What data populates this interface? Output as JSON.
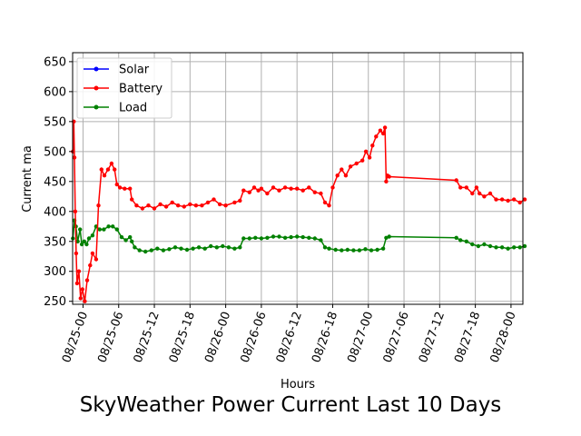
{
  "chart_data": {
    "type": "line",
    "title": "SkyWeather Power Current Last 10 Days",
    "xlabel": "Hours",
    "ylabel": "Current ma",
    "xlim": [
      "08/24 22:15",
      "08/28 02:00"
    ],
    "ylim": [
      245,
      665
    ],
    "yticks": [
      250,
      300,
      350,
      400,
      450,
      500,
      550,
      600,
      650
    ],
    "xticks": [
      "08/25-00",
      "08/25-06",
      "08/25-12",
      "08/25-18",
      "08/26-00",
      "08/26-06",
      "08/26-12",
      "08/26-18",
      "08/27-00",
      "08/27-06",
      "08/27-12",
      "08/27-18",
      "08/28-00"
    ],
    "x_unit_note": "x values are hours since 08/25 00:00",
    "grid": true,
    "legend_position": "top-left",
    "series": [
      {
        "name": "Solar",
        "color": "#0000ff",
        "points": []
      },
      {
        "name": "Battery",
        "color": "#ff0000",
        "points": [
          [
            -1.7,
            500
          ],
          [
            -1.55,
            550
          ],
          [
            -1.45,
            490
          ],
          [
            -1.3,
            400
          ],
          [
            -1.15,
            330
          ],
          [
            -1.0,
            280
          ],
          [
            -0.7,
            300
          ],
          [
            -0.4,
            255
          ],
          [
            -0.1,
            270
          ],
          [
            0.3,
            250
          ],
          [
            0.7,
            285
          ],
          [
            1.2,
            310
          ],
          [
            1.6,
            330
          ],
          [
            2.2,
            320
          ],
          [
            2.6,
            410
          ],
          [
            3.1,
            470
          ],
          [
            3.6,
            460
          ],
          [
            4.2,
            470
          ],
          [
            4.8,
            480
          ],
          [
            5.3,
            470
          ],
          [
            5.7,
            445
          ],
          [
            6.2,
            440
          ],
          [
            7.0,
            438
          ],
          [
            7.9,
            438
          ],
          [
            8.2,
            420
          ],
          [
            9.0,
            410
          ],
          [
            10.0,
            405
          ],
          [
            11.0,
            410
          ],
          [
            12.0,
            405
          ],
          [
            13.0,
            412
          ],
          [
            14.0,
            408
          ],
          [
            15.0,
            415
          ],
          [
            16.0,
            410
          ],
          [
            17.0,
            408
          ],
          [
            18.0,
            412
          ],
          [
            19.0,
            410
          ],
          [
            20.0,
            410
          ],
          [
            21.0,
            415
          ],
          [
            22.0,
            420
          ],
          [
            23.0,
            412
          ],
          [
            24.0,
            410
          ],
          [
            25.5,
            415
          ],
          [
            26.4,
            418
          ],
          [
            27.0,
            435
          ],
          [
            28.0,
            432
          ],
          [
            28.8,
            440
          ],
          [
            29.5,
            435
          ],
          [
            30.0,
            438
          ],
          [
            31.0,
            430
          ],
          [
            32.0,
            440
          ],
          [
            33.0,
            435
          ],
          [
            34.0,
            440
          ],
          [
            35.0,
            438
          ],
          [
            36.0,
            438
          ],
          [
            37.0,
            435
          ],
          [
            38.0,
            440
          ],
          [
            39.0,
            432
          ],
          [
            40.0,
            430
          ],
          [
            40.7,
            415
          ],
          [
            41.4,
            410
          ],
          [
            42.0,
            440
          ],
          [
            42.8,
            460
          ],
          [
            43.5,
            470
          ],
          [
            44.2,
            460
          ],
          [
            45.0,
            475
          ],
          [
            46.0,
            480
          ],
          [
            47.0,
            485
          ],
          [
            47.6,
            500
          ],
          [
            48.2,
            490
          ],
          [
            48.7,
            510
          ],
          [
            49.3,
            525
          ],
          [
            50.0,
            535
          ],
          [
            50.5,
            530
          ],
          [
            50.8,
            540
          ],
          [
            51.0,
            450
          ],
          [
            51.2,
            460
          ],
          [
            51.5,
            458
          ],
          [
            62.8,
            452
          ],
          [
            63.5,
            440
          ],
          [
            64.5,
            440
          ],
          [
            65.5,
            430
          ],
          [
            66.2,
            440
          ],
          [
            66.7,
            430
          ],
          [
            67.5,
            425
          ],
          [
            68.5,
            430
          ],
          [
            69.5,
            420
          ],
          [
            70.5,
            420
          ],
          [
            71.5,
            418
          ],
          [
            72.5,
            420
          ],
          [
            73.5,
            415
          ],
          [
            74.3,
            420
          ]
        ]
      },
      {
        "name": "Load",
        "color": "#008000",
        "points": [
          [
            -1.7,
            355
          ],
          [
            -1.45,
            385
          ],
          [
            -1.2,
            375
          ],
          [
            -0.9,
            350
          ],
          [
            -0.5,
            370
          ],
          [
            -0.2,
            345
          ],
          [
            0.2,
            350
          ],
          [
            0.6,
            345
          ],
          [
            1.0,
            355
          ],
          [
            1.6,
            360
          ],
          [
            2.2,
            375
          ],
          [
            2.8,
            370
          ],
          [
            3.5,
            370
          ],
          [
            4.3,
            375
          ],
          [
            5.0,
            375
          ],
          [
            5.7,
            370
          ],
          [
            6.5,
            357
          ],
          [
            7.2,
            352
          ],
          [
            7.9,
            357
          ],
          [
            8.2,
            350
          ],
          [
            8.7,
            340
          ],
          [
            9.5,
            335
          ],
          [
            10.5,
            333
          ],
          [
            11.5,
            335
          ],
          [
            12.5,
            338
          ],
          [
            13.5,
            335
          ],
          [
            14.5,
            337
          ],
          [
            15.5,
            340
          ],
          [
            16.5,
            338
          ],
          [
            17.5,
            336
          ],
          [
            18.5,
            338
          ],
          [
            19.5,
            340
          ],
          [
            20.5,
            338
          ],
          [
            21.5,
            342
          ],
          [
            22.5,
            340
          ],
          [
            23.5,
            342
          ],
          [
            24.5,
            340
          ],
          [
            25.5,
            338
          ],
          [
            26.4,
            340
          ],
          [
            27.0,
            355
          ],
          [
            28.0,
            355
          ],
          [
            29.0,
            356
          ],
          [
            30.0,
            355
          ],
          [
            31.0,
            356
          ],
          [
            32.0,
            358
          ],
          [
            33.0,
            358
          ],
          [
            34.0,
            356
          ],
          [
            35.0,
            357
          ],
          [
            36.0,
            358
          ],
          [
            37.0,
            357
          ],
          [
            38.0,
            356
          ],
          [
            39.0,
            355
          ],
          [
            40.0,
            352
          ],
          [
            40.7,
            340
          ],
          [
            41.4,
            338
          ],
          [
            42.5,
            336
          ],
          [
            43.5,
            335
          ],
          [
            44.5,
            336
          ],
          [
            45.5,
            335
          ],
          [
            46.5,
            335
          ],
          [
            47.5,
            337
          ],
          [
            48.5,
            335
          ],
          [
            49.5,
            336
          ],
          [
            50.5,
            338
          ],
          [
            51.0,
            356
          ],
          [
            51.5,
            358
          ],
          [
            62.8,
            356
          ],
          [
            63.5,
            352
          ],
          [
            64.5,
            350
          ],
          [
            65.5,
            345
          ],
          [
            66.5,
            342
          ],
          [
            67.5,
            345
          ],
          [
            68.5,
            342
          ],
          [
            69.5,
            340
          ],
          [
            70.5,
            340
          ],
          [
            71.5,
            338
          ],
          [
            72.5,
            340
          ],
          [
            73.5,
            340
          ],
          [
            74.3,
            342
          ]
        ]
      }
    ]
  }
}
